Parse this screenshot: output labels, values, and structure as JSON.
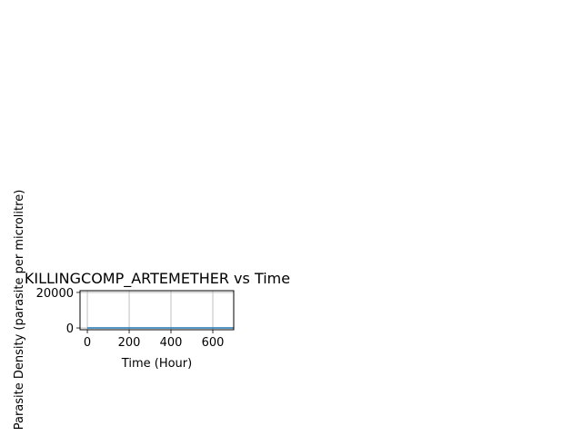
{
  "chart_data": {
    "type": "line",
    "title": "KILLINGCOMP_ARTEMETHER vs Time",
    "xlabel": "Time (Hour)",
    "ylabel": "Parasite Density (parasite per microlitre)",
    "xlim": [
      -35,
      700
    ],
    "ylim": [
      -1000,
      21000
    ],
    "xticks": [
      0,
      200,
      400,
      600
    ],
    "yticks": [
      0,
      20000
    ],
    "grid": true,
    "series": [
      {
        "x": [
          0,
          100,
          200,
          300,
          400,
          500,
          600,
          700
        ],
        "y": [
          0,
          0,
          0,
          0,
          0,
          0,
          0,
          0
        ],
        "color": "#1f77b4"
      }
    ]
  }
}
